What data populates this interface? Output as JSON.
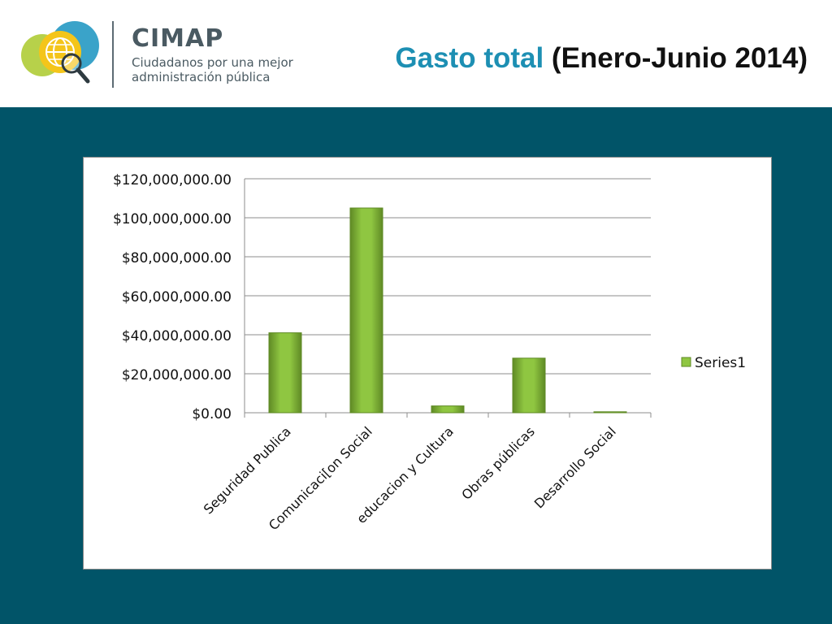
{
  "header": {
    "brand_name": "CIMAP",
    "brand_tagline_line1": "Ciudadanos por una mejor",
    "brand_tagline_line2": "administración pública",
    "title_accent": "Gasto total",
    "title_rest": " (Enero-Junio 2014)"
  },
  "colors": {
    "title_accent": "#1d8fb3",
    "band": "#015468",
    "bar_fill": "#8fc641",
    "bar_dark": "#5f8a25"
  },
  "chart_data": {
    "type": "bar",
    "categories": [
      "Seguridad Publica",
      "Comunicaci[on Social",
      "educacion y Cultura",
      "Obras públicas",
      "Desarrollo Social"
    ],
    "series": [
      {
        "name": "Series1",
        "values": [
          41000000,
          105000000,
          3500000,
          28000000,
          500000
        ]
      }
    ],
    "y_ticks": [
      "$0.00",
      "$20,000,000.00",
      "$40,000,000.00",
      "$60,000,000.00",
      "$80,000,000.00",
      "$100,000,000.00",
      "$120,000,000.00"
    ],
    "ylim": [
      0,
      120000000
    ],
    "grid": true,
    "legend_position": "right",
    "title": "",
    "xlabel": "",
    "ylabel": ""
  }
}
